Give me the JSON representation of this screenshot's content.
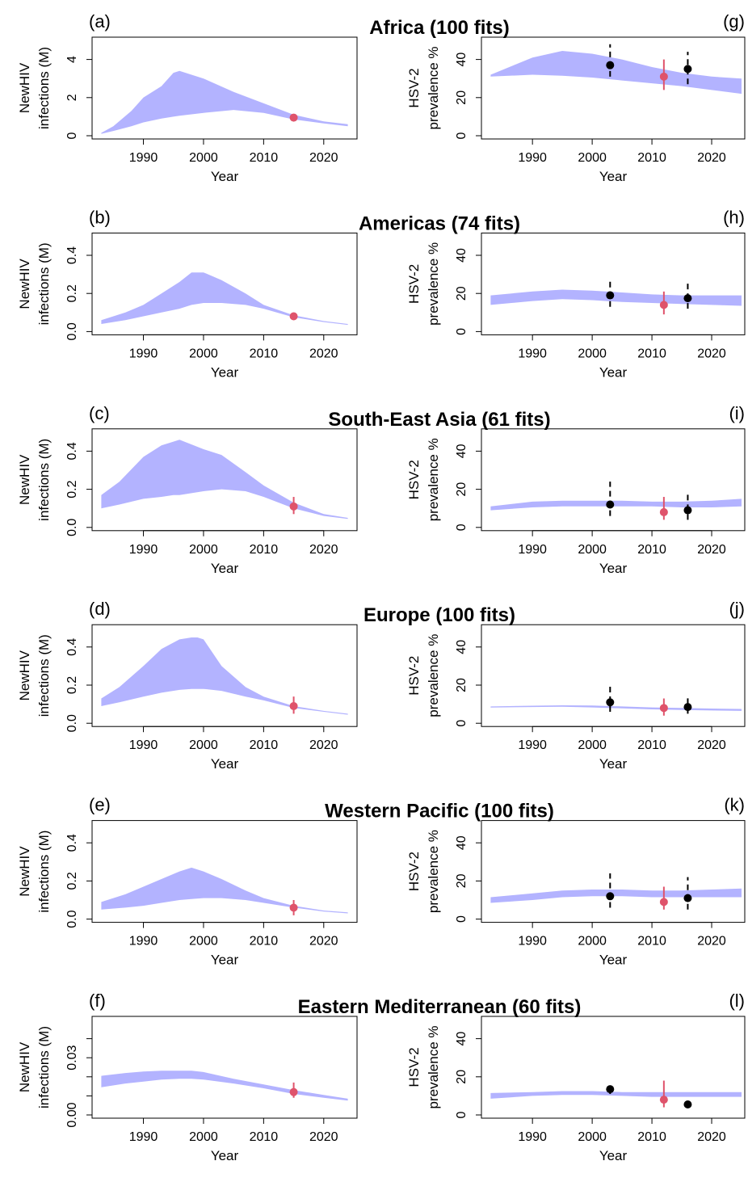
{
  "chart_data": [
    {
      "panel": "(a)",
      "title": "Africa (100 fits)",
      "type": "area",
      "xlabel": "Year",
      "ylabel": "NewHIV infections (M)",
      "xlim": [
        1982,
        2025
      ],
      "ylim": [
        0,
        5
      ],
      "xticks": [
        "1990",
        "2000",
        "2010",
        "2020"
      ],
      "yticks": [
        "0",
        "2",
        "4"
      ],
      "ytick_values": [
        0,
        2,
        4
      ],
      "band": {
        "x": [
          1983,
          1985,
          1988,
          1990,
          1993,
          1995,
          1996,
          2000,
          2005,
          2010,
          2015,
          2020,
          2024
        ],
        "lower": [
          0.1,
          0.25,
          0.5,
          0.7,
          0.9,
          1.0,
          1.05,
          1.2,
          1.35,
          1.2,
          0.85,
          0.65,
          0.5
        ],
        "upper": [
          0.15,
          0.5,
          1.3,
          2.0,
          2.6,
          3.3,
          3.4,
          3.0,
          2.3,
          1.7,
          1.1,
          0.75,
          0.6
        ]
      },
      "points": [
        {
          "x": 2015,
          "y": 0.95,
          "lo": 0.85,
          "hi": 1.05,
          "color": "#DF536B"
        }
      ]
    },
    {
      "panel": "(g)",
      "title": "",
      "type": "area",
      "xlabel": "Year",
      "ylabel": "HSV-2 prevalence %",
      "xlim": [
        1982,
        2025
      ],
      "ylim": [
        0,
        50
      ],
      "xticks": [
        "1990",
        "2000",
        "2010",
        "2020"
      ],
      "yticks": [
        "0",
        "20",
        "40"
      ],
      "ytick_values": [
        0,
        20,
        40
      ],
      "band": {
        "x": [
          1983,
          1990,
          1995,
          2000,
          2005,
          2010,
          2015,
          2020,
          2025
        ],
        "lower": [
          31,
          32,
          31.5,
          30.5,
          29,
          27.5,
          26,
          24,
          22
        ],
        "upper": [
          32,
          41,
          44.5,
          43,
          40,
          36,
          33,
          31,
          30
        ]
      },
      "points": [
        {
          "x": 2003,
          "y": 37,
          "lo": 31,
          "hi": 48,
          "color": "#000000"
        },
        {
          "x": 2012,
          "y": 31,
          "lo": 24,
          "hi": 40,
          "color": "#DF536B"
        },
        {
          "x": 2016,
          "y": 35,
          "lo": 27,
          "hi": 44,
          "color": "#000000"
        }
      ]
    },
    {
      "panel": "(b)",
      "title": "Americas (74 fits)",
      "type": "area",
      "xlabel": "Year",
      "ylabel": "NewHIV infections (M)",
      "xlim": [
        1982,
        2025
      ],
      "ylim": [
        0,
        0.5
      ],
      "xticks": [
        "1990",
        "2000",
        "2010",
        "2020"
      ],
      "yticks": [
        "0.0",
        "0.2",
        "0.4"
      ],
      "ytick_values": [
        0,
        0.2,
        0.4
      ],
      "band": {
        "x": [
          1983,
          1987,
          1990,
          1993,
          1996,
          1998,
          2000,
          2003,
          2007,
          2010,
          2015,
          2020,
          2024
        ],
        "lower": [
          0.04,
          0.06,
          0.08,
          0.1,
          0.12,
          0.14,
          0.15,
          0.15,
          0.14,
          0.12,
          0.075,
          0.05,
          0.035
        ],
        "upper": [
          0.06,
          0.1,
          0.14,
          0.2,
          0.26,
          0.31,
          0.31,
          0.27,
          0.2,
          0.14,
          0.085,
          0.055,
          0.04
        ]
      },
      "points": [
        {
          "x": 2015,
          "y": 0.08,
          "lo": 0.07,
          "hi": 0.09,
          "color": "#DF536B"
        }
      ]
    },
    {
      "panel": "(h)",
      "title": "",
      "type": "area",
      "xlabel": "Year",
      "ylabel": "HSV-2 prevalence %",
      "xlim": [
        1982,
        2025
      ],
      "ylim": [
        0,
        50
      ],
      "xticks": [
        "1990",
        "2000",
        "2010",
        "2020"
      ],
      "yticks": [
        "0",
        "20",
        "40"
      ],
      "ytick_values": [
        0,
        20,
        40
      ],
      "band": {
        "x": [
          1983,
          1990,
          1995,
          2000,
          2005,
          2010,
          2015,
          2020,
          2025
        ],
        "lower": [
          14,
          16,
          17,
          16.5,
          15.5,
          15,
          14.5,
          14,
          13.5
        ],
        "upper": [
          19,
          21,
          22,
          21.5,
          20.5,
          19.5,
          19,
          19,
          19
        ]
      },
      "points": [
        {
          "x": 2003,
          "y": 19,
          "lo": 13,
          "hi": 27,
          "color": "#000000"
        },
        {
          "x": 2012,
          "y": 14,
          "lo": 9,
          "hi": 21,
          "color": "#DF536B"
        },
        {
          "x": 2016,
          "y": 17.5,
          "lo": 12,
          "hi": 26,
          "color": "#000000"
        }
      ]
    },
    {
      "panel": "(c)",
      "title": "South-East Asia (61 fits)",
      "type": "area",
      "xlabel": "Year",
      "ylabel": "NewHIV infections (M)",
      "xlim": [
        1982,
        2025
      ],
      "ylim": [
        0,
        0.5
      ],
      "xticks": [
        "1990",
        "2000",
        "2010",
        "2020"
      ],
      "yticks": [
        "0.0",
        "0.2",
        "0.4"
      ],
      "ytick_values": [
        0,
        0.2,
        0.4
      ],
      "band": {
        "x": [
          1983,
          1986,
          1990,
          1993,
          1995,
          1996,
          2000,
          2003,
          2007,
          2010,
          2015,
          2020,
          2024
        ],
        "lower": [
          0.1,
          0.12,
          0.15,
          0.16,
          0.17,
          0.17,
          0.19,
          0.2,
          0.19,
          0.16,
          0.1,
          0.06,
          0.045
        ],
        "upper": [
          0.17,
          0.24,
          0.37,
          0.43,
          0.45,
          0.46,
          0.41,
          0.38,
          0.29,
          0.22,
          0.13,
          0.07,
          0.05
        ]
      },
      "points": [
        {
          "x": 2015,
          "y": 0.11,
          "lo": 0.07,
          "hi": 0.16,
          "color": "#DF536B"
        }
      ]
    },
    {
      "panel": "(i)",
      "title": "",
      "type": "area",
      "xlabel": "Year",
      "ylabel": "HSV-2 prevalence %",
      "xlim": [
        1982,
        2025
      ],
      "ylim": [
        0,
        50
      ],
      "xticks": [
        "1990",
        "2000",
        "2010",
        "2020"
      ],
      "yticks": [
        "0",
        "20",
        "40"
      ],
      "ytick_values": [
        0,
        20,
        40
      ],
      "band": {
        "x": [
          1983,
          1990,
          1995,
          2000,
          2005,
          2010,
          2015,
          2020,
          2025
        ],
        "lower": [
          9,
          10.5,
          11,
          11,
          11,
          11,
          10.5,
          10.5,
          11
        ],
        "upper": [
          11,
          13.5,
          14,
          14,
          14,
          13.5,
          13.5,
          14,
          15
        ]
      },
      "points": [
        {
          "x": 2003,
          "y": 12,
          "lo": 6,
          "hi": 24,
          "color": "#000000"
        },
        {
          "x": 2012,
          "y": 8,
          "lo": 4,
          "hi": 16,
          "color": "#DF536B"
        },
        {
          "x": 2016,
          "y": 9,
          "lo": 4,
          "hi": 18,
          "color": "#000000"
        }
      ]
    },
    {
      "panel": "(d)",
      "title": "Europe (100 fits)",
      "type": "area",
      "xlabel": "Year",
      "ylabel": "NewHIV infections (M)",
      "xlim": [
        1982,
        2025
      ],
      "ylim": [
        0,
        0.5
      ],
      "xticks": [
        "1990",
        "2000",
        "2010",
        "2020"
      ],
      "yticks": [
        "0.0",
        "0.2",
        "0.4"
      ],
      "ytick_values": [
        0,
        0.2,
        0.4
      ],
      "band": {
        "x": [
          1983,
          1986,
          1990,
          1993,
          1996,
          1998,
          1999,
          2000,
          2003,
          2007,
          2010,
          2015,
          2020,
          2024
        ],
        "lower": [
          0.09,
          0.11,
          0.14,
          0.16,
          0.175,
          0.18,
          0.18,
          0.18,
          0.17,
          0.14,
          0.12,
          0.08,
          0.06,
          0.045
        ],
        "upper": [
          0.13,
          0.19,
          0.3,
          0.39,
          0.44,
          0.45,
          0.45,
          0.44,
          0.3,
          0.19,
          0.14,
          0.09,
          0.065,
          0.05
        ]
      },
      "points": [
        {
          "x": 2015,
          "y": 0.09,
          "lo": 0.05,
          "hi": 0.14,
          "color": "#DF536B"
        }
      ]
    },
    {
      "panel": "(j)",
      "title": "",
      "type": "area",
      "xlabel": "Year",
      "ylabel": "HSV-2 prevalence %",
      "xlim": [
        1982,
        2025
      ],
      "ylim": [
        0,
        50
      ],
      "xticks": [
        "1990",
        "2000",
        "2010",
        "2020"
      ],
      "yticks": [
        "0",
        "20",
        "40"
      ],
      "ytick_values": [
        0,
        20,
        40
      ],
      "band": {
        "x": [
          1983,
          1990,
          1995,
          2000,
          2005,
          2010,
          2015,
          2020,
          2025
        ],
        "lower": [
          8.2,
          8.5,
          8.7,
          8.3,
          7.8,
          7.3,
          7,
          6.7,
          6.5
        ],
        "upper": [
          8.8,
          9.2,
          9.4,
          9.3,
          8.8,
          8.3,
          8,
          7.7,
          7.5
        ]
      },
      "points": [
        {
          "x": 2003,
          "y": 11,
          "lo": 6,
          "hi": 20,
          "color": "#000000"
        },
        {
          "x": 2012,
          "y": 8,
          "lo": 4,
          "hi": 13,
          "color": "#DF536B"
        },
        {
          "x": 2016,
          "y": 8.5,
          "lo": 5,
          "hi": 15,
          "color": "#000000"
        }
      ]
    },
    {
      "panel": "(e)",
      "title": "Western Pacific (100 fits)",
      "type": "area",
      "xlabel": "Year",
      "ylabel": "NewHIV infections (M)",
      "xlim": [
        1982,
        2025
      ],
      "ylim": [
        0,
        0.5
      ],
      "xticks": [
        "1990",
        "2000",
        "2010",
        "2020"
      ],
      "yticks": [
        "0.0",
        "0.2",
        "0.4"
      ],
      "ytick_values": [
        0,
        0.2,
        0.4
      ],
      "band": {
        "x": [
          1983,
          1987,
          1990,
          1993,
          1996,
          1998,
          2000,
          2003,
          2007,
          2010,
          2015,
          2020,
          2024
        ],
        "lower": [
          0.05,
          0.06,
          0.07,
          0.085,
          0.1,
          0.105,
          0.11,
          0.11,
          0.1,
          0.085,
          0.06,
          0.04,
          0.03
        ],
        "upper": [
          0.09,
          0.13,
          0.17,
          0.21,
          0.25,
          0.27,
          0.25,
          0.21,
          0.15,
          0.11,
          0.07,
          0.045,
          0.035
        ]
      },
      "points": [
        {
          "x": 2015,
          "y": 0.06,
          "lo": 0.02,
          "hi": 0.1,
          "color": "#DF536B"
        }
      ]
    },
    {
      "panel": "(k)",
      "title": "",
      "type": "area",
      "xlabel": "Year",
      "ylabel": "HSV-2 prevalence %",
      "xlim": [
        1982,
        2025
      ],
      "ylim": [
        0,
        50
      ],
      "xticks": [
        "1990",
        "2000",
        "2010",
        "2020"
      ],
      "yticks": [
        "0",
        "20",
        "40"
      ],
      "ytick_values": [
        0,
        20,
        40
      ],
      "band": {
        "x": [
          1983,
          1990,
          1995,
          2000,
          2005,
          2010,
          2015,
          2020,
          2025
        ],
        "lower": [
          8.5,
          10,
          11.5,
          12,
          12,
          11.5,
          11.5,
          11.5,
          11.5
        ],
        "upper": [
          11.5,
          13.5,
          15,
          15.5,
          15.5,
          15,
          15,
          15.5,
          16
        ]
      },
      "points": [
        {
          "x": 2003,
          "y": 12,
          "lo": 6,
          "hi": 24,
          "color": "#000000"
        },
        {
          "x": 2012,
          "y": 9,
          "lo": 5,
          "hi": 17,
          "color": "#DF536B"
        },
        {
          "x": 2016,
          "y": 11,
          "lo": 5,
          "hi": 22,
          "color": "#000000"
        }
      ]
    },
    {
      "panel": "(f)",
      "title": "Eastern Mediterranean (60 fits)",
      "type": "area",
      "xlabel": "Year",
      "ylabel": "NewHIV infections (M)",
      "xlim": [
        1982,
        2025
      ],
      "ylim": [
        0,
        0.05
      ],
      "xticks": [
        "1990",
        "2000",
        "2010",
        "2020"
      ],
      "yticks": [
        "0.00",
        "0.03"
      ],
      "ytick_values": [
        0,
        0.01,
        0.02,
        0.03,
        0.04
      ],
      "ytick_labels_shown": [
        "0.00",
        "0.03"
      ],
      "band": {
        "x": [
          1983,
          1987,
          1990,
          1993,
          1996,
          1998,
          2000,
          2005,
          2010,
          2015,
          2020,
          2024
        ],
        "lower": [
          0.0145,
          0.0165,
          0.0175,
          0.0185,
          0.019,
          0.019,
          0.0185,
          0.0165,
          0.014,
          0.011,
          0.009,
          0.0075
        ],
        "upper": [
          0.0205,
          0.022,
          0.0228,
          0.0232,
          0.0232,
          0.0232,
          0.0225,
          0.019,
          0.016,
          0.013,
          0.0105,
          0.0085
        ]
      },
      "points": [
        {
          "x": 2015,
          "y": 0.012,
          "lo": 0.009,
          "hi": 0.017,
          "color": "#DF536B"
        }
      ]
    },
    {
      "panel": "(l)",
      "title": "",
      "type": "area",
      "xlabel": "Year",
      "ylabel": "HSV-2 prevalence %",
      "xlim": [
        1982,
        2025
      ],
      "ylim": [
        0,
        50
      ],
      "xticks": [
        "1990",
        "2000",
        "2010",
        "2020"
      ],
      "yticks": [
        "0",
        "20",
        "40"
      ],
      "ytick_values": [
        0,
        20,
        40
      ],
      "band": {
        "x": [
          1983,
          1990,
          1995,
          2000,
          2005,
          2010,
          2015,
          2020,
          2025
        ],
        "lower": [
          8.5,
          10,
          10.5,
          10.5,
          10,
          9.5,
          9.5,
          9.5,
          9.5
        ],
        "upper": [
          11.5,
          12,
          12.5,
          12.5,
          12,
          12,
          12,
          12,
          12
        ]
      },
      "points": [
        {
          "x": 2003,
          "y": 13.5,
          "lo": 11,
          "hi": 16,
          "color": "#000000"
        },
        {
          "x": 2012,
          "y": 8,
          "lo": 4,
          "hi": 18,
          "color": "#DF536B"
        },
        {
          "x": 2016,
          "y": 5.5,
          "lo": 4.5,
          "hi": 6.5,
          "color": "#000000"
        }
      ]
    }
  ],
  "colors": {
    "band": "#B3B3FF",
    "model_point": "#DF536B",
    "data_point": "#000000",
    "axis": "#000000"
  }
}
